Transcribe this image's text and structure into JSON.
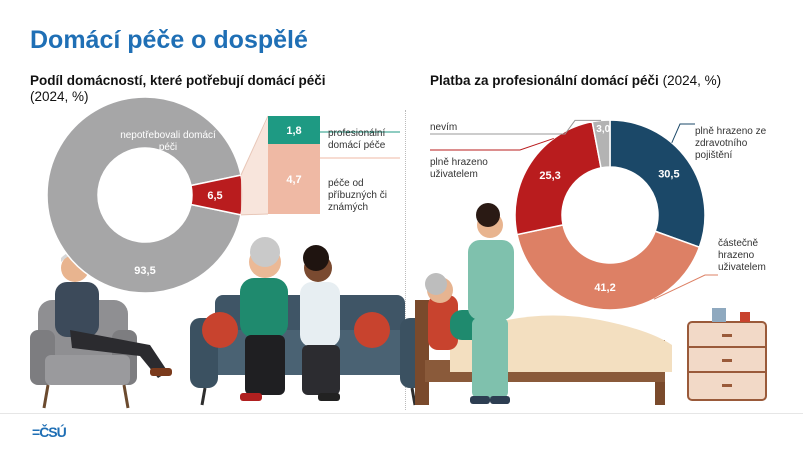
{
  "page_title": "Domácí péče o dospělé",
  "left_panel": {
    "title_bold": "Podíl domácností, které potřebují domácí péči",
    "title_rest": "(2024, %)"
  },
  "right_panel": {
    "title_bold": "Platba za profesionální domácí péči",
    "title_rest": "(2024, %)"
  },
  "footer": {
    "logo_text": "ČSÚ"
  },
  "colors": {
    "gray": "#a6a6a7",
    "red": "#b91c1e",
    "green": "#1e9a83",
    "peach": "#efb9a4",
    "navy": "#1b4868",
    "salmon": "#dd8065",
    "light_gray": "#b3b3b3",
    "title_blue": "#1f6fb5"
  },
  "chart_data": [
    {
      "type": "pie",
      "variant": "donut",
      "slices": [
        {
          "label": "nepotřebovali domácí péči",
          "value": 93.5,
          "value_label": "93,5",
          "color": "#a6a6a7"
        },
        {
          "label": "",
          "value": 6.5,
          "value_label": "6,5",
          "color": "#b91c1e"
        }
      ],
      "breakdown": {
        "type": "bar",
        "stacked": true,
        "segments": [
          {
            "label": "profesionální domácí péče",
            "value": 1.8,
            "value_label": "1,8",
            "color": "#1e9a83"
          },
          {
            "label": "péče od příbuzných či známých",
            "value": 4.7,
            "value_label": "4,7",
            "color": "#efb9a4"
          }
        ]
      }
    },
    {
      "type": "pie",
      "variant": "donut",
      "slices": [
        {
          "label": "plně hrazeno ze zdravotního pojištění",
          "value": 30.5,
          "value_label": "30,5",
          "color": "#1b4868"
        },
        {
          "label": "částečně hrazeno uživatelem",
          "value": 41.2,
          "value_label": "41,2",
          "color": "#dd8065"
        },
        {
          "label": "plně hrazeno uživatelem",
          "value": 25.3,
          "value_label": "25,3",
          "color": "#b91c1e"
        },
        {
          "label": "nevím",
          "value": 3.0,
          "value_label": "3,0",
          "color": "#b3b3b3"
        }
      ]
    }
  ]
}
